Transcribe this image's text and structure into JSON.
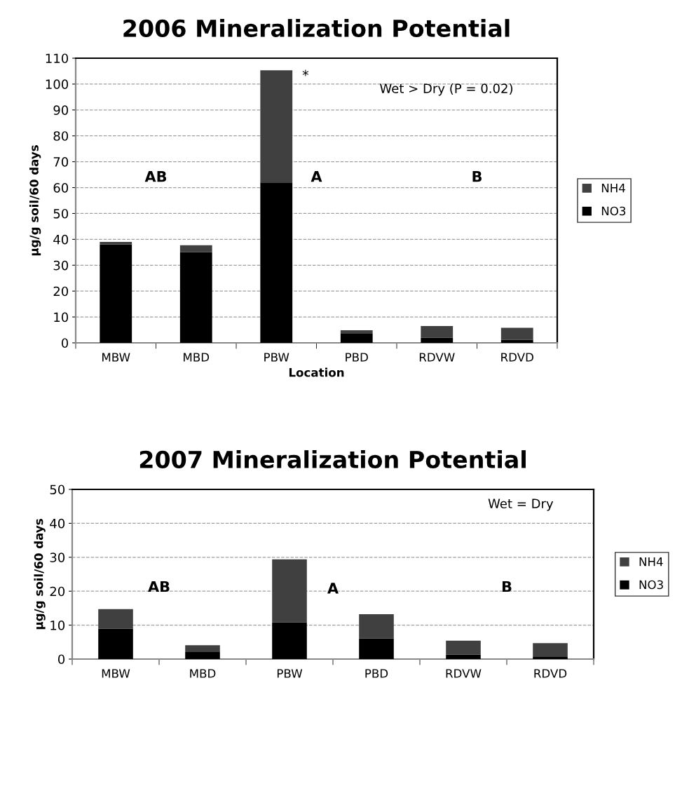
{
  "chart_data": [
    {
      "type": "bar",
      "title": "2006 Mineralization Potential",
      "xlabel": "Location",
      "ylabel": "µg/g soil/60 days",
      "categories": [
        "MBW",
        "MBD",
        "PBW",
        "PBD",
        "RDVW",
        "RDVD"
      ],
      "stacked": true,
      "series": [
        {
          "name": "NO3",
          "color": "#000000",
          "values": [
            38,
            35,
            62,
            3.7,
            2,
            1.2
          ]
        },
        {
          "name": "NH4",
          "color": "#404040",
          "values": [
            1,
            2.7,
            43.3,
            1.2,
            4.5,
            4.6
          ]
        }
      ],
      "ylim": [
        0,
        110
      ],
      "yticks": [
        0,
        10,
        20,
        30,
        40,
        50,
        60,
        70,
        80,
        90,
        100,
        110
      ],
      "grid": "y",
      "legend": "right",
      "annotations": [
        "AB",
        "A",
        "B",
        {
          "text": "*",
          "x": "PBW",
          "y": 105.3
        },
        "Wet > Dry (P = 0.02)"
      ]
    },
    {
      "type": "bar",
      "title": "2007 Mineralization Potential",
      "ylabel": "µg/g soil/60 days",
      "categories": [
        "MBW",
        "MBD",
        "PBW",
        "PBD",
        "RDVW",
        "RDVD"
      ],
      "stacked": true,
      "series": [
        {
          "name": "NO3",
          "color": "#000000",
          "values": [
            9,
            2.2,
            10.8,
            6.1,
            1.3,
            0.8
          ]
        },
        {
          "name": "NH4",
          "color": "#404040",
          "values": [
            5.7,
            1.9,
            18.6,
            7.1,
            4.1,
            3.9
          ]
        }
      ],
      "ylim": [
        0,
        50
      ],
      "yticks": [
        0,
        10,
        20,
        30,
        40,
        50
      ],
      "grid": "y",
      "legend": "right",
      "annotations": [
        "AB",
        "A",
        "B",
        "Wet = Dry"
      ]
    }
  ]
}
